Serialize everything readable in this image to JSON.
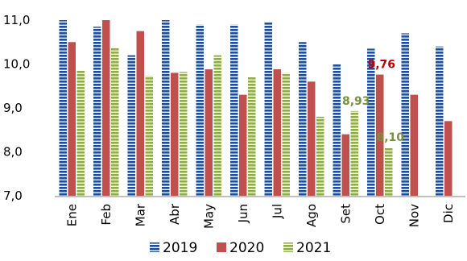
{
  "chart_data": {
    "type": "bar",
    "categories": [
      "Ene",
      "Feb",
      "Mar",
      "Abr",
      "May",
      "Jun",
      "Jul",
      "Ago",
      "Set",
      "Oct",
      "Nov",
      "Dic"
    ],
    "series": [
      {
        "name": "2019",
        "color": "#1F4E99",
        "values": [
          11.0,
          10.85,
          10.2,
          11.0,
          10.9,
          10.9,
          10.95,
          10.5,
          10.0,
          10.35,
          10.7,
          10.4
        ]
      },
      {
        "name": "2020",
        "color": "#C0504D",
        "values": [
          10.5,
          11.0,
          10.75,
          9.8,
          9.88,
          9.3,
          9.88,
          9.6,
          8.4,
          9.76,
          9.3,
          8.7
        ]
      },
      {
        "name": "2021",
        "color": "#8FAC4A",
        "values": [
          9.85,
          10.38,
          9.73,
          9.82,
          10.2,
          9.7,
          9.8,
          8.8,
          8.93,
          8.1,
          null,
          null
        ]
      }
    ],
    "yticks": [
      "7,0",
      "8,0",
      "9,0",
      "10,0",
      "11,0"
    ],
    "ylim": [
      7.0,
      11.0
    ],
    "annotations": [
      {
        "text": "9,76",
        "series": "2020",
        "category": "Oct",
        "color": "#C00000"
      },
      {
        "text": "8,93",
        "series": "2021",
        "category": "Set",
        "color": "#76933C"
      },
      {
        "text": "8,10",
        "series": "2021",
        "category": "Oct",
        "color": "#76933C"
      }
    ],
    "legend_position": "bottom",
    "grid": false
  }
}
